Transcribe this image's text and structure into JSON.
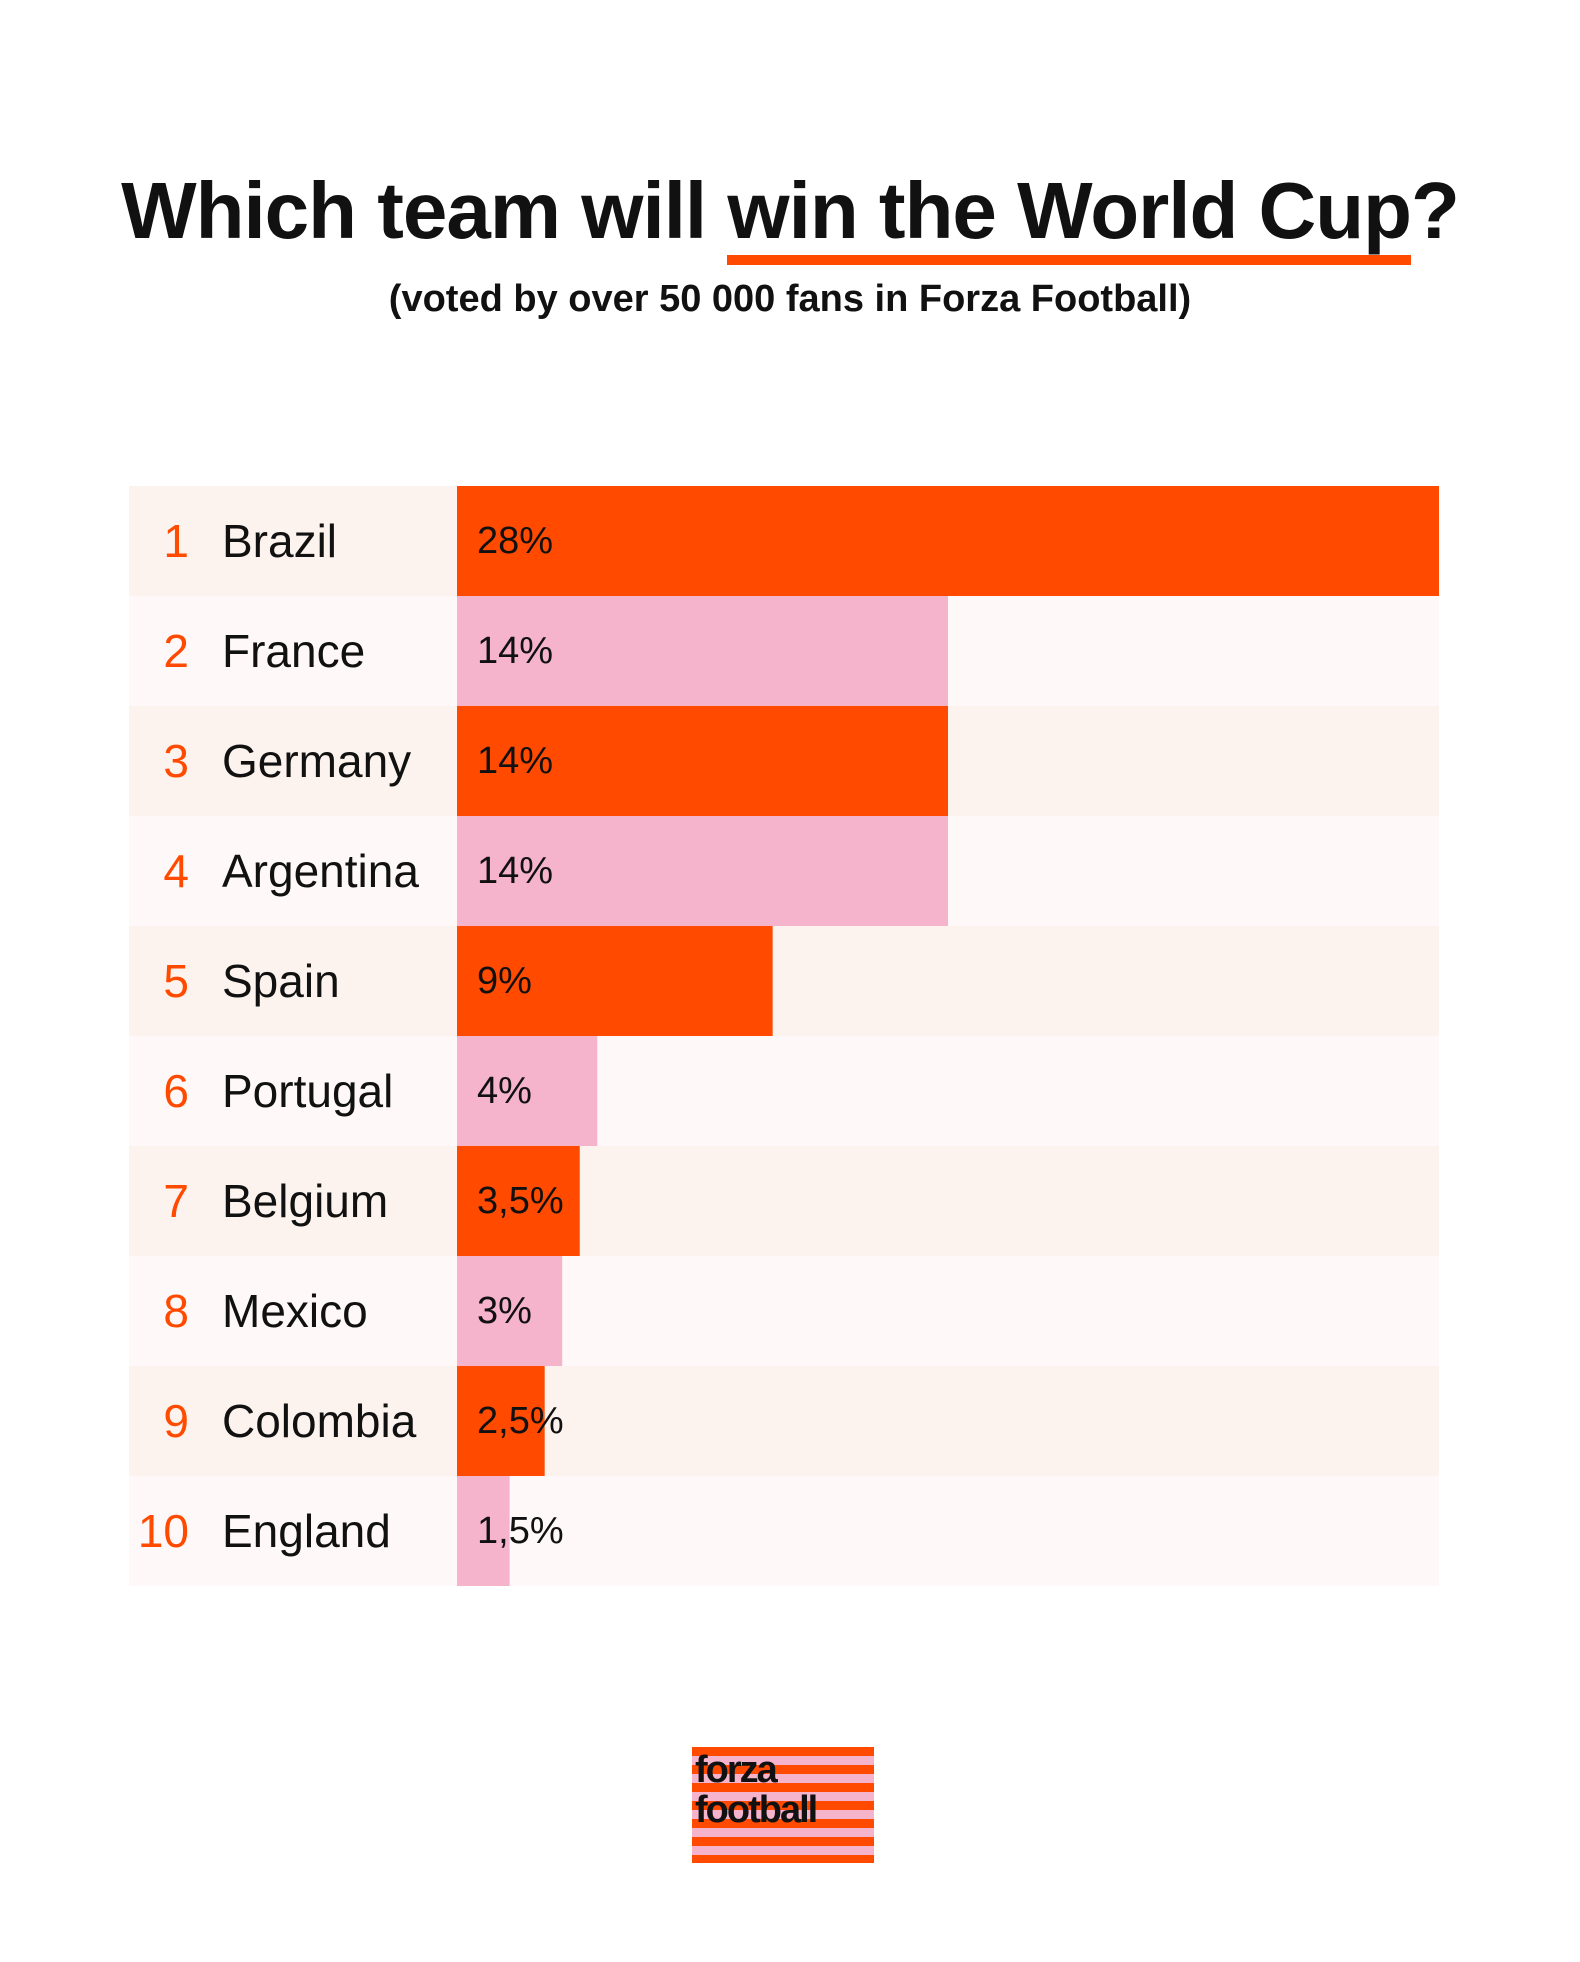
{
  "title": {
    "prefix": "Which team will ",
    "highlight": "win the World Cup",
    "suffix": "?"
  },
  "subtitle": "(voted by over 50 000 fans in Forza Football)",
  "colors": {
    "accent": "#ff4a00",
    "pink": "#f5b3cc",
    "row_light_orange": "#fdf3ee",
    "row_light_pink": "#fef8f8",
    "text": "#111111"
  },
  "chart_data": {
    "type": "bar",
    "orientation": "horizontal",
    "categories": [
      "Brazil",
      "France",
      "Germany",
      "Argentina",
      "Spain",
      "Portugal",
      "Belgium",
      "Mexico",
      "Colombia",
      "England"
    ],
    "ranks": [
      "1",
      "2",
      "3",
      "4",
      "5",
      "6",
      "7",
      "8",
      "9",
      "10"
    ],
    "values": [
      28,
      14,
      14,
      14,
      9,
      4,
      3.5,
      3,
      2.5,
      1.5
    ],
    "value_labels": [
      "28%",
      "14%",
      "14%",
      "14%",
      "9%",
      "4%",
      "3,5%",
      "3%",
      "2,5%",
      "1,5%"
    ],
    "unit": "%",
    "xlim": [
      0,
      28
    ],
    "grid": false,
    "legend": "none",
    "bar_colors_alternate": [
      "#ff4a00",
      "#f5b3cc"
    ]
  },
  "logo": {
    "line1": "forza",
    "line2": "football"
  }
}
